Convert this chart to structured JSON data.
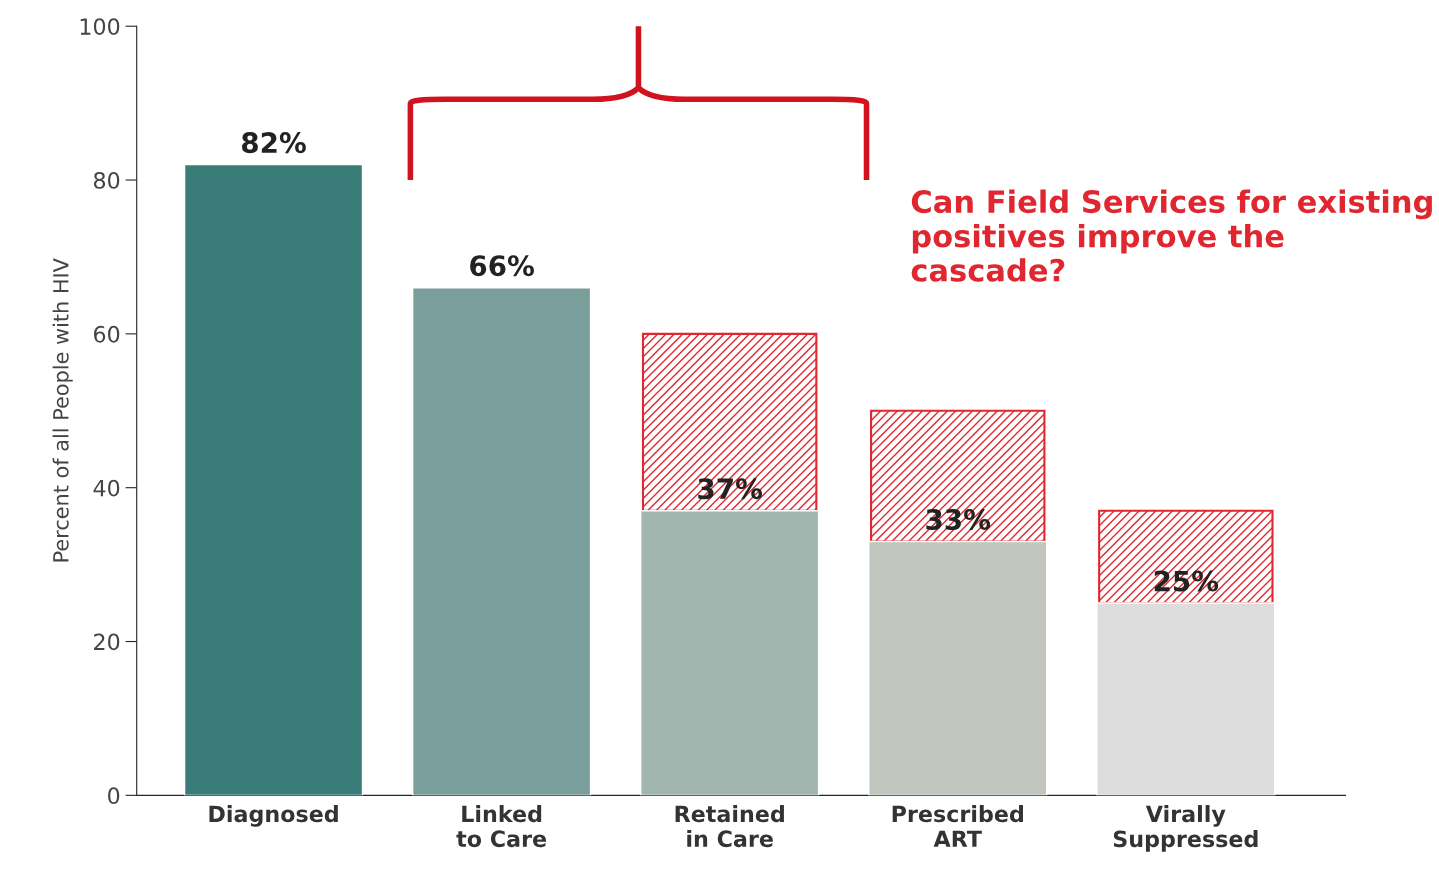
{
  "chart_data": {
    "type": "bar",
    "stacked": true,
    "ylabel": "Percent of all People with HIV",
    "categories": [
      "Diagnosed",
      "Linked\nto Care",
      "Retained\nin Care",
      "Prescribed\nART",
      "Virally\nSuppressed"
    ],
    "series": [
      {
        "colors": [
          "#3a7d78",
          "#7a9e9b",
          "#a2b5af",
          "#c0c6bd",
          "#dcdddc"
        ],
        "values": [
          82,
          66,
          37,
          33,
          25
        ],
        "value_labels": [
          "82%",
          "66%",
          "37%",
          "33%",
          "25%"
        ]
      },
      {
        "color": "#e0262f",
        "values": [
          null,
          null,
          23,
          17,
          12
        ]
      }
    ],
    "ylim": [
      0,
      100
    ],
    "yticks": [
      0,
      20,
      40,
      60,
      80,
      100
    ],
    "grid": false,
    "legend": false,
    "annotations": [
      "Can Field Services for existing positives improve the cascade?"
    ]
  }
}
